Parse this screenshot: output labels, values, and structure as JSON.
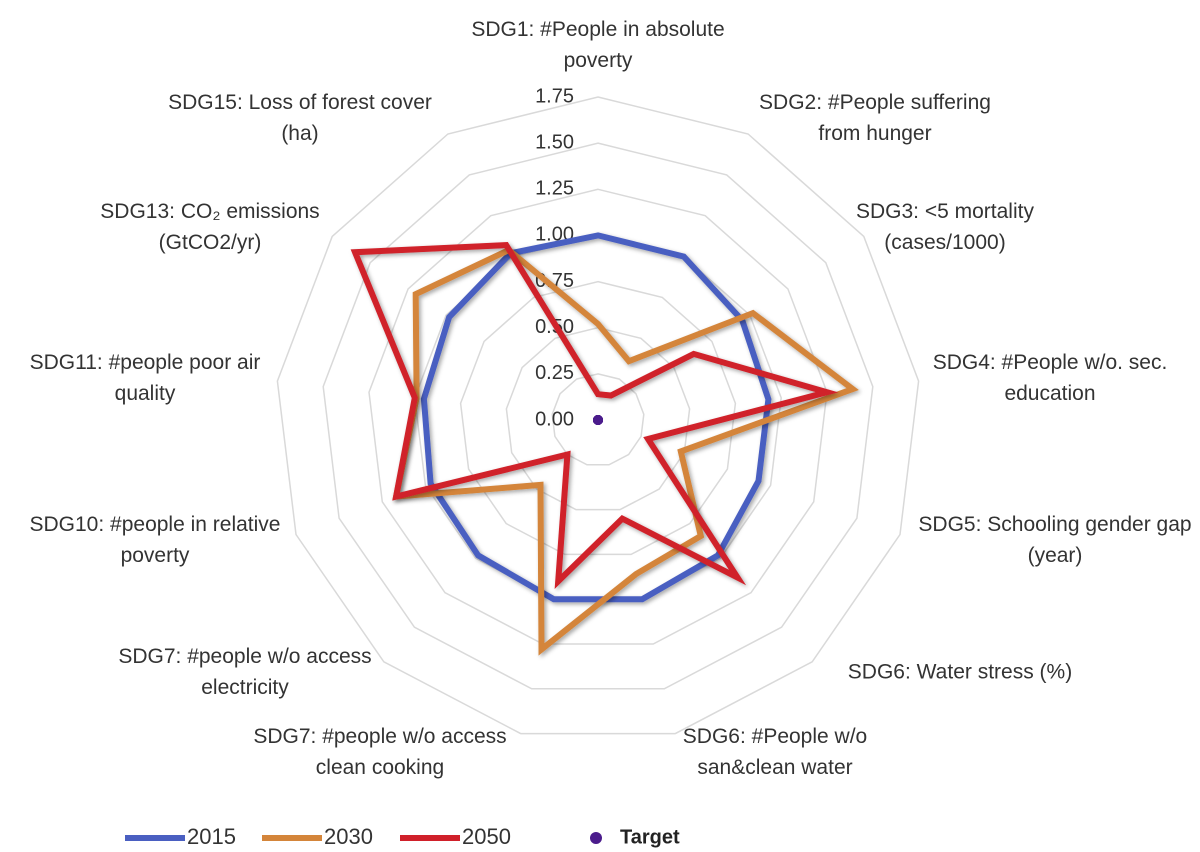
{
  "chart_data": {
    "type": "radar",
    "categories": [
      "SDG1: #People in absolute poverty",
      "SDG2: #People suffering from hunger",
      "SDG3: <5 mortality (cases/1000)",
      "SDG4: #People w/o. sec. education",
      "SDG5: Schooling gender gap (year)",
      "SDG6: Water stress (%)",
      "SDG6: #People w/o san&clean water",
      "SDG7: #people w/o access clean cooking",
      "SDG7: #people w/o access electricity",
      "SDG10: #people in relative poverty",
      "SDG11: #people poor air quality",
      "SDG13: CO₂  emissions (GtCO2/yr)",
      "SDG15: Loss of forest cover (ha)"
    ],
    "series": [
      {
        "name": "2015",
        "color": "#4a5fc1",
        "values": [
          1.0,
          1.0,
          0.95,
          0.93,
          0.93,
          0.98,
          1.0,
          1.0,
          0.98,
          0.97,
          0.95,
          0.98,
          1.02
        ]
      },
      {
        "name": "2030",
        "color": "#d4853a",
        "values": [
          0.52,
          0.36,
          1.02,
          1.39,
          0.48,
          0.84,
          0.86,
          1.28,
          0.47,
          1.17,
          0.99,
          1.2,
          1.04
        ]
      },
      {
        "name": "2050",
        "color": "#d0202a",
        "values": [
          0.14,
          0.15,
          0.63,
          1.25,
          0.29,
          1.14,
          0.55,
          0.9,
          0.25,
          1.17,
          1.0,
          1.6,
          1.07
        ]
      },
      {
        "name": "Target",
        "color": "#4b1c8c",
        "marker": "dot",
        "values": [
          0,
          0,
          0,
          0,
          0,
          0,
          0,
          0,
          0,
          0,
          0,
          0,
          0
        ]
      }
    ],
    "rlim": [
      0,
      1.75
    ],
    "rticks": [
      {
        "value": 0,
        "label": "0.00"
      },
      {
        "value": 0.25,
        "label": "0.25"
      },
      {
        "value": 0.5,
        "label": "0.50"
      },
      {
        "value": 0.75,
        "label": "0.75"
      },
      {
        "value": 1,
        "label": "1.00"
      },
      {
        "value": 1.25,
        "label": "1.25"
      },
      {
        "value": 1.5,
        "label": "1.50"
      },
      {
        "value": 1.75,
        "label": "1.75"
      }
    ],
    "grid": true,
    "legend": "bottom"
  }
}
